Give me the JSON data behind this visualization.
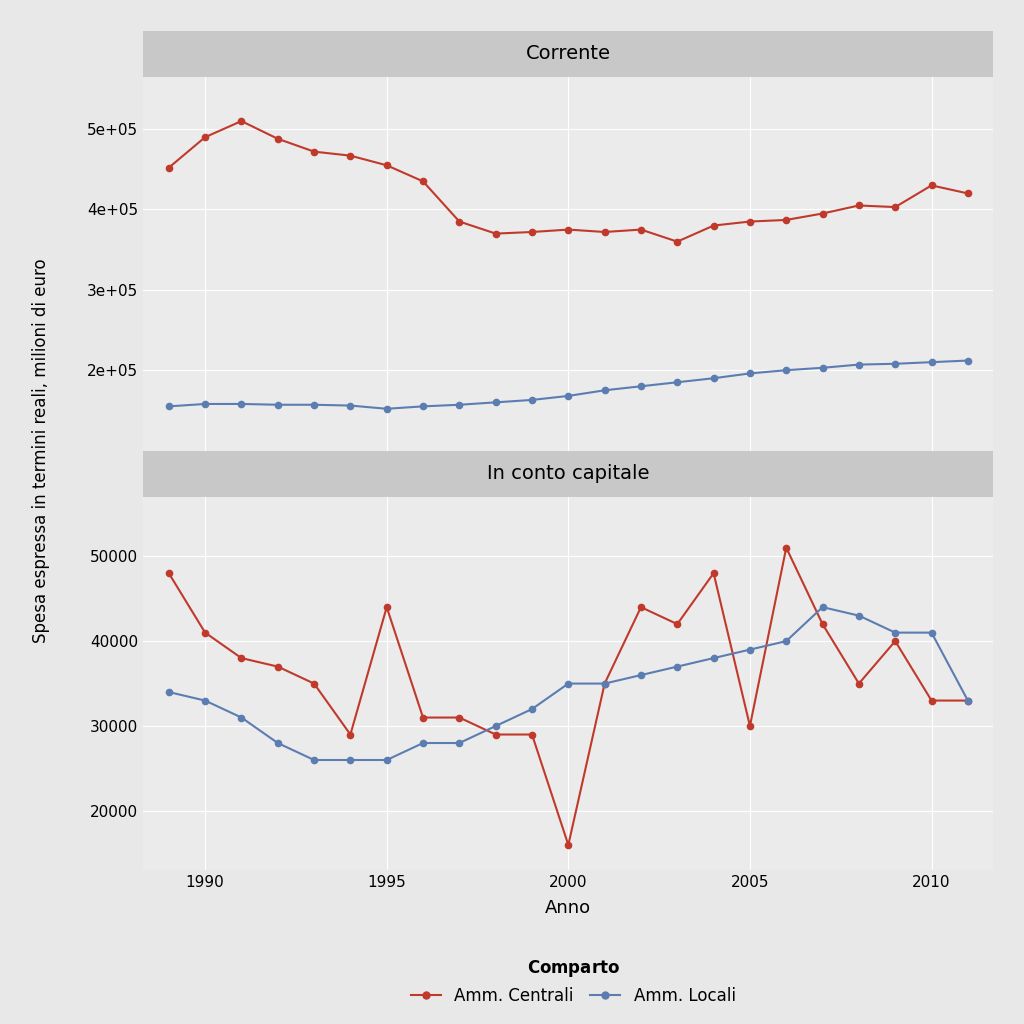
{
  "years": [
    1989,
    1990,
    1991,
    1992,
    1993,
    1994,
    1995,
    1996,
    1997,
    1998,
    1999,
    2000,
    2001,
    2002,
    2003,
    2004,
    2005,
    2006,
    2007,
    2008,
    2009,
    2010,
    2011
  ],
  "corrente_centrali": [
    452000,
    490000,
    510000,
    488000,
    472000,
    467000,
    455000,
    435000,
    385000,
    370000,
    372000,
    375000,
    372000,
    375000,
    360000,
    380000,
    385000,
    387000,
    395000,
    405000,
    403000,
    430000,
    420000
  ],
  "corrente_locali": [
    155000,
    158000,
    158000,
    157000,
    157000,
    156000,
    152000,
    155000,
    157000,
    160000,
    163000,
    168000,
    175000,
    180000,
    185000,
    190000,
    196000,
    200000,
    203000,
    207000,
    208000,
    210000,
    212000
  ],
  "capitale_centrali": [
    48000,
    41000,
    38000,
    37000,
    35000,
    29000,
    44000,
    31000,
    31000,
    29000,
    29000,
    16000,
    35000,
    44000,
    42000,
    48000,
    30000,
    51000,
    42000,
    35000,
    40000,
    33000,
    33000
  ],
  "capitale_locali": [
    34000,
    33000,
    31000,
    28000,
    26000,
    26000,
    26000,
    28000,
    28000,
    30000,
    32000,
    35000,
    35000,
    36000,
    37000,
    38000,
    39000,
    40000,
    44000,
    43000,
    41000,
    41000,
    33000
  ],
  "corrente_ylim": [
    100000,
    565000
  ],
  "corrente_yticks": [
    200000,
    300000,
    400000,
    500000
  ],
  "corrente_ytick_labels": [
    "2e+05",
    "3e+05",
    "4e+05",
    "5e+05"
  ],
  "capitale_ylim": [
    13000,
    57000
  ],
  "capitale_yticks": [
    20000,
    30000,
    40000,
    50000
  ],
  "capitale_ytick_labels": [
    "20000",
    "30000",
    "40000",
    "50000"
  ],
  "color_centrali": "#C0392B",
  "color_locali": "#5B7DB1",
  "background_fig": "#E8E8E8",
  "background_panel": "#EBEBEB",
  "background_strip": "#C8C8C8",
  "title_corrente": "Corrente",
  "title_capitale": "In conto capitale",
  "xlabel": "Anno",
  "ylabel": "Spesa espressa in termini reali, milioni di euro",
  "legend_title": "Comparto",
  "legend_centrali": "Amm. Centrali",
  "legend_locali": "Amm. Locali",
  "xticks": [
    1990,
    1995,
    2000,
    2005,
    2010
  ],
  "markersize": 4.5,
  "linewidth": 1.5
}
